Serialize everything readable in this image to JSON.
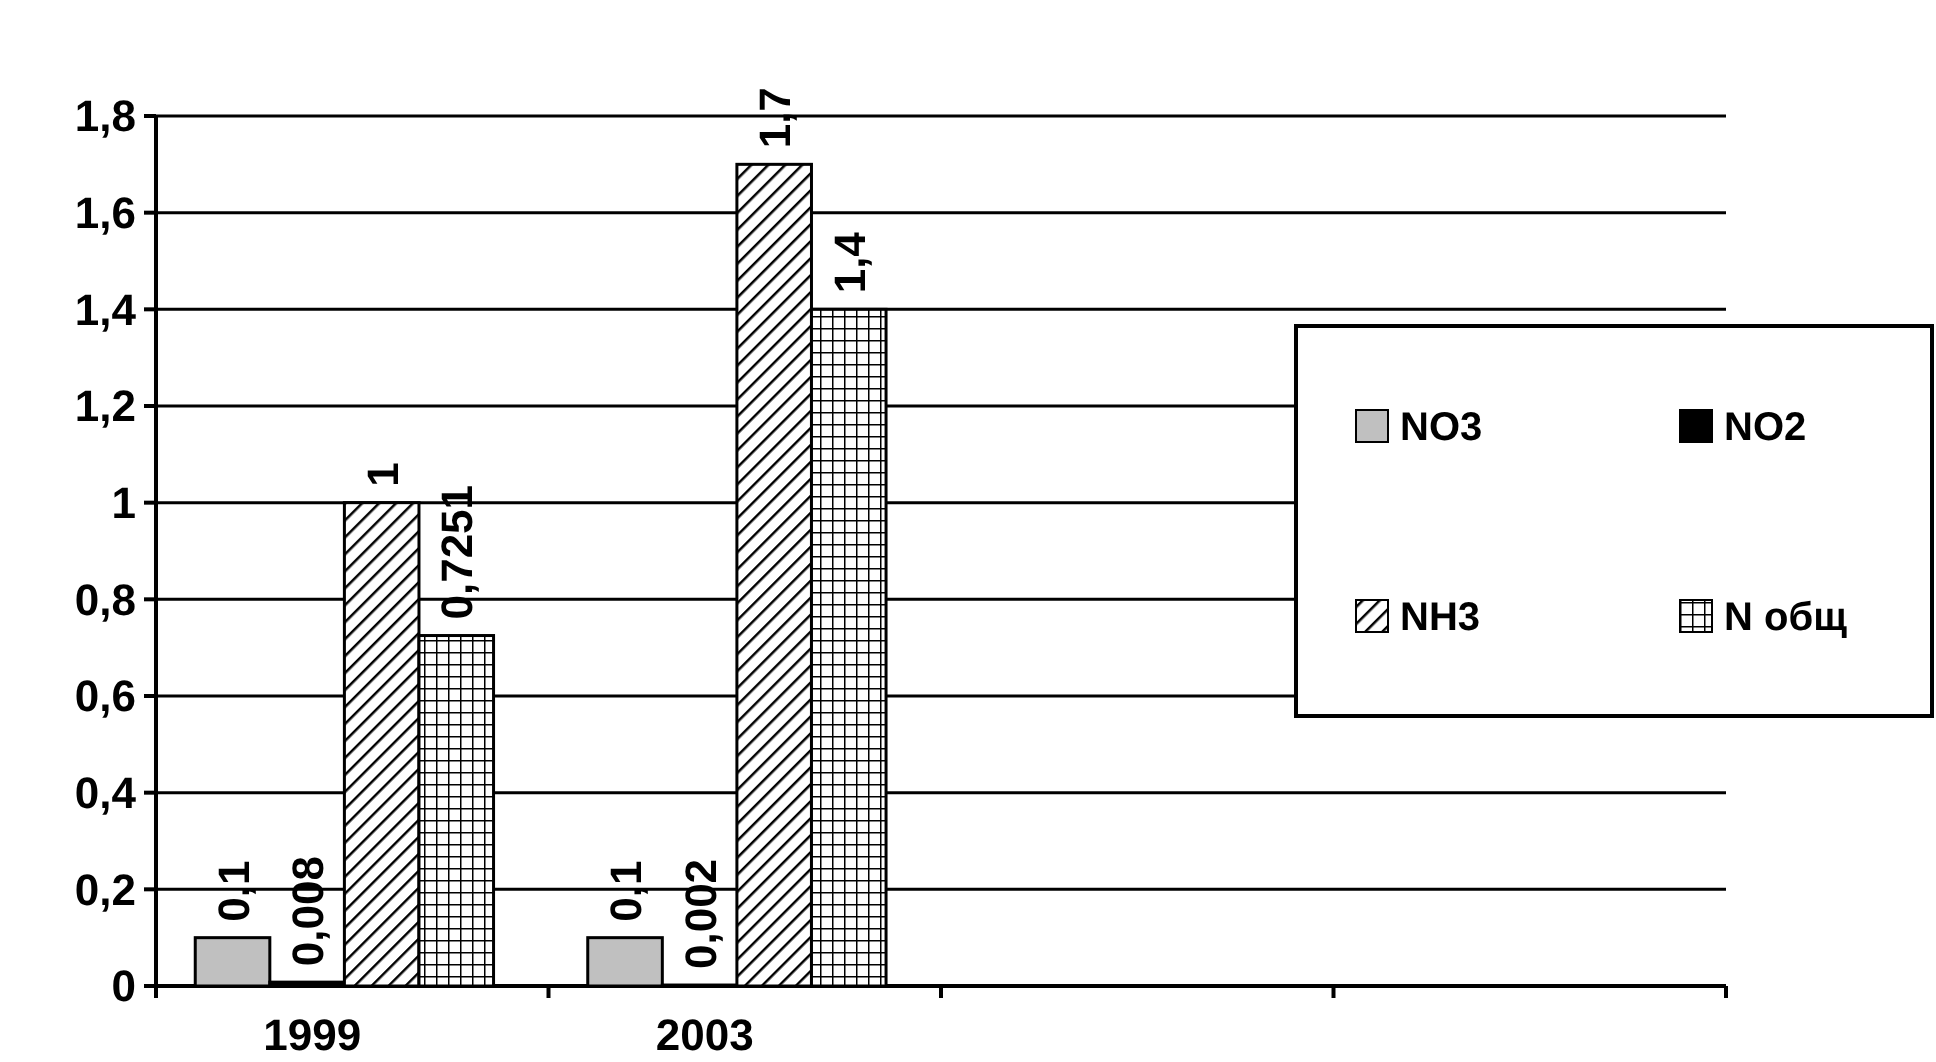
{
  "chart_data": {
    "type": "bar",
    "categories": [
      "1999",
      "2003",
      null,
      null
    ],
    "series": [
      {
        "name": "NO3",
        "color": "#c0c0c0",
        "values": [
          0.1,
          0.1,
          null,
          null
        ],
        "value_labels": [
          "0,1",
          "0,1",
          null,
          null
        ]
      },
      {
        "name": "NO2",
        "color": "#000000",
        "values": [
          0.008,
          0.002,
          null,
          null
        ],
        "value_labels": [
          "0,008",
          "0,002",
          null,
          null
        ]
      },
      {
        "name": "NH3",
        "color": "#000000",
        "values": [
          1,
          1.7,
          null,
          null
        ],
        "value_labels": [
          "1",
          "1,7",
          null,
          null
        ]
      },
      {
        "name": "N общ",
        "color": "#000000",
        "values": [
          0.7251,
          1.4,
          null,
          null
        ],
        "value_labels": [
          "0,7251",
          "1,4",
          null,
          null
        ]
      }
    ],
    "ylim": [
      0,
      1.8
    ],
    "yticks": [
      0,
      {
        "value": 0.2,
        "label": "0,2"
      },
      {
        "value": 0.4,
        "label": "0,4"
      },
      {
        "value": 0.6,
        "label": "0,6"
      },
      {
        "value": 0.8,
        "label": "0,8"
      },
      1,
      {
        "value": 1.2,
        "label": "1,2"
      },
      {
        "value": 1.4,
        "label": "1,4"
      },
      {
        "value": 1.6,
        "label": "1,6"
      },
      {
        "value": 1.8,
        "label": "1,8"
      }
    ],
    "grid": "y",
    "legend": "right"
  }
}
